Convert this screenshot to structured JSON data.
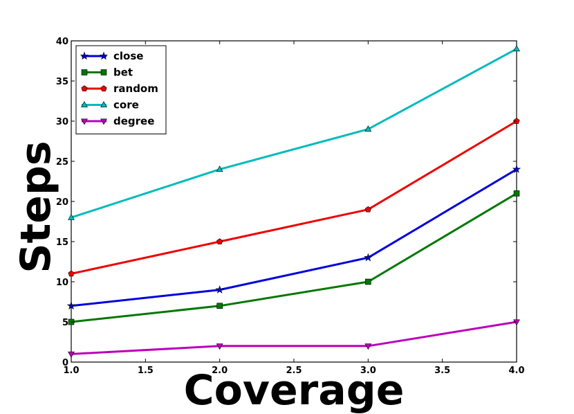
{
  "chart_data": {
    "type": "line",
    "xlabel": "Coverage",
    "ylabel": "Steps",
    "xlim": [
      1.0,
      4.0
    ],
    "ylim": [
      0,
      40
    ],
    "x_ticks": [
      "1.0",
      "1.5",
      "2.0",
      "2.5",
      "3.0",
      "3.5",
      "4.0"
    ],
    "y_ticks": [
      "0",
      "5",
      "10",
      "15",
      "20",
      "25",
      "30",
      "35",
      "40"
    ],
    "x": [
      1.0,
      2.0,
      3.0,
      4.0
    ],
    "legend_position": "top-left",
    "grid": false,
    "series": [
      {
        "name": "close",
        "color": "#0000dd",
        "marker": "star",
        "values": [
          7,
          9,
          13,
          24
        ]
      },
      {
        "name": "bet",
        "color": "#007700",
        "marker": "square",
        "values": [
          5,
          7,
          10,
          21
        ]
      },
      {
        "name": "random",
        "color": "#ee0000",
        "marker": "pentagon",
        "values": [
          11,
          15,
          19,
          30
        ]
      },
      {
        "name": "core",
        "color": "#00bbbb",
        "marker": "triangle-up",
        "values": [
          18,
          24,
          29,
          39
        ]
      },
      {
        "name": "degree",
        "color": "#bb00bb",
        "marker": "triangle-down",
        "values": [
          1,
          2,
          2,
          5
        ]
      }
    ]
  }
}
